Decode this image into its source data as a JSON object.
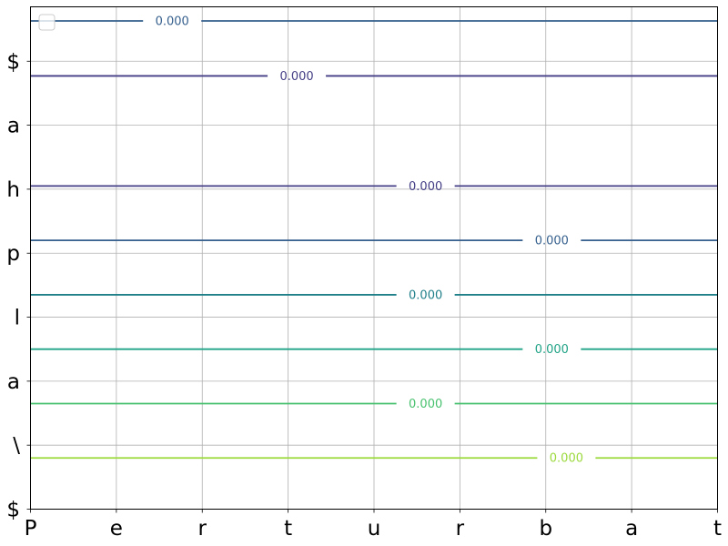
{
  "chart_data": {
    "type": "line",
    "chart_kind": "contour",
    "title": "",
    "xlabel": "",
    "ylabel": "",
    "x_tick_labels": [
      "P",
      "e",
      "r",
      "t",
      "u",
      "r",
      "b",
      "a",
      "t"
    ],
    "y_tick_labels": [
      "$",
      "\\",
      "a",
      "l",
      "p",
      "h",
      "a",
      "$"
    ],
    "xlim": [
      0,
      8
    ],
    "ylim": [
      0,
      7.85
    ],
    "grid": true,
    "legend": "top-left",
    "legend_entries": [],
    "series": [
      {
        "value_label": "0.000",
        "y": 7.63,
        "label_x": 1.65,
        "color": "#355f8d"
      },
      {
        "value_label": "0.000",
        "y": 6.77,
        "label_x": 3.1,
        "color": "#433e85"
      },
      {
        "value_label": "0.000",
        "y": 5.05,
        "label_x": 4.6,
        "color": "#433e85"
      },
      {
        "value_label": "0.000",
        "y": 4.2,
        "label_x": 6.07,
        "color": "#355f8d"
      },
      {
        "value_label": "0.000",
        "y": 3.35,
        "label_x": 4.6,
        "color": "#1f7f89"
      },
      {
        "value_label": "0.000",
        "y": 2.5,
        "label_x": 6.07,
        "color": "#20a386"
      },
      {
        "value_label": "0.000",
        "y": 1.65,
        "label_x": 4.6,
        "color": "#47c16e"
      },
      {
        "value_label": "0.000",
        "y": 0.8,
        "label_x": 6.24,
        "color": "#9bd93c"
      }
    ]
  }
}
